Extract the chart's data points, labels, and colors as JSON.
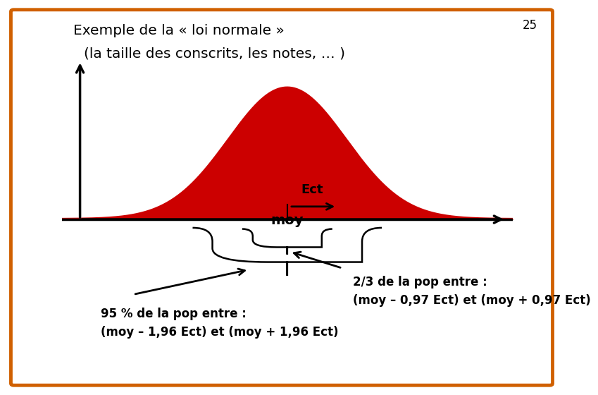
{
  "title_line1": "Exemple de la « loi normale »",
  "title_line2": "(la taille des conscrits, les notes, … )",
  "page_number": "25",
  "curve_color": "#cc0000",
  "axis_color": "#000000",
  "background_color": "#ffffff",
  "border_color": "#d06000",
  "text_2_3": "2/3 de la pop entre :",
  "text_2_3_b": "(moy – 0,97 Ect) et (moy + 0,97 Ect)",
  "text_95": "95 % de la pop entre :",
  "text_95_b": "(moy – 1,96 Ect) et (moy + 1,96 Ect)",
  "label_ect": "Ect",
  "label_moy": "moy",
  "mu": 0.0,
  "sigma": 1.3,
  "x_min": -5.0,
  "x_max": 5.0
}
